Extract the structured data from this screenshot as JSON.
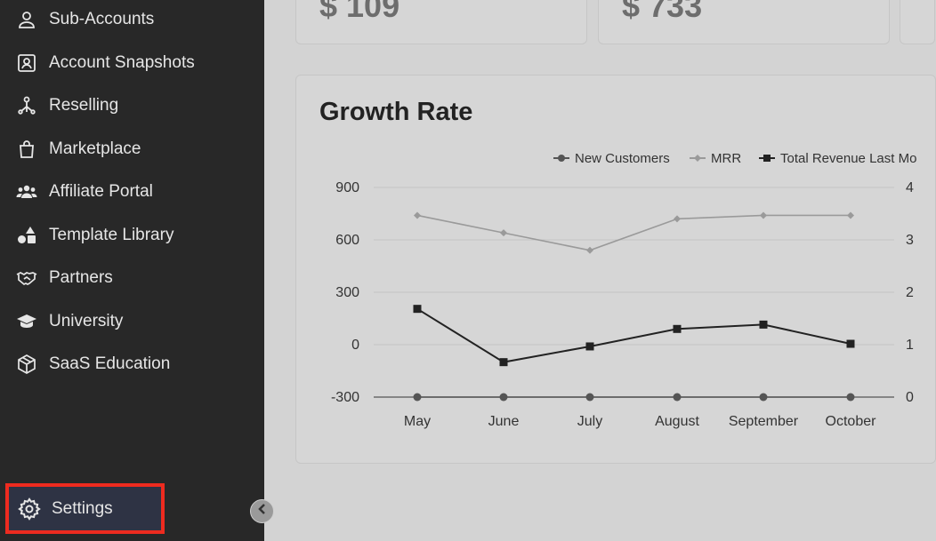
{
  "sidebar": {
    "items": [
      {
        "label": "Sub-Accounts",
        "icon": "user-icon"
      },
      {
        "label": "Account Snapshots",
        "icon": "snapshot-icon"
      },
      {
        "label": "Reselling",
        "icon": "reselling-icon"
      },
      {
        "label": "Marketplace",
        "icon": "shopping-bag-icon"
      },
      {
        "label": "Affiliate Portal",
        "icon": "users-icon"
      },
      {
        "label": "Template Library",
        "icon": "shapes-icon"
      },
      {
        "label": "Partners",
        "icon": "handshake-icon"
      },
      {
        "label": "University",
        "icon": "graduation-cap-icon"
      },
      {
        "label": "SaaS Education",
        "icon": "box-icon"
      }
    ],
    "settings": {
      "label": "Settings",
      "icon": "gear-icon"
    }
  },
  "stats": {
    "card1_value": "$ 109",
    "card2_value": "$ 733"
  },
  "growth": {
    "title": "Growth Rate"
  },
  "chart_data": {
    "type": "line",
    "title": "Growth Rate",
    "categories": [
      "May",
      "June",
      "July",
      "August",
      "September",
      "October"
    ],
    "ylim": [
      -300,
      900
    ],
    "yticks": [
      900,
      600,
      300,
      0,
      -300
    ],
    "right_ticks_partial": [
      "4",
      "3",
      "2",
      "1",
      "0"
    ],
    "grid": true,
    "legend_position": "top-right",
    "series": [
      {
        "name": "New Customers",
        "marker": "circle",
        "color": "#555555",
        "values": [
          -300,
          -300,
          -300,
          -300,
          -300,
          -300
        ]
      },
      {
        "name": "MRR",
        "marker": "diamond",
        "color": "#9a9a9a",
        "values": [
          740,
          640,
          540,
          720,
          740,
          740
        ]
      },
      {
        "name": "Total Revenue Last Mo",
        "marker": "square",
        "color": "#222222",
        "values": [
          205,
          -100,
          -10,
          90,
          115,
          5
        ]
      }
    ]
  }
}
